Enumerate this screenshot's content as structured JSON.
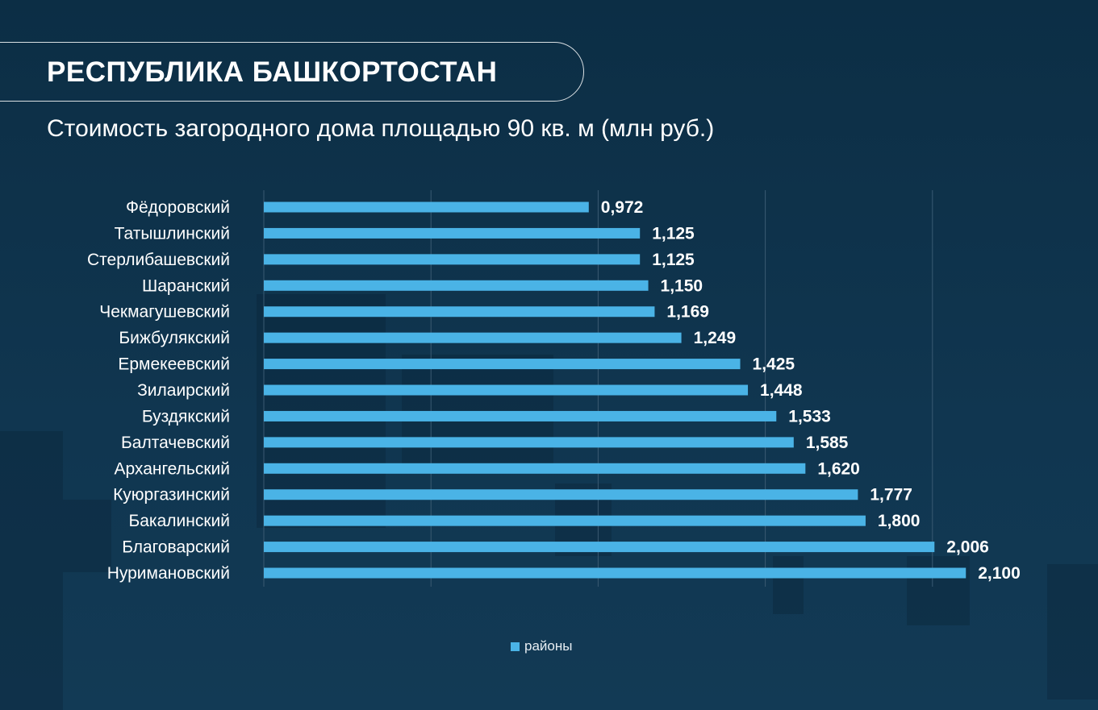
{
  "header": {
    "title": "РЕСПУБЛИКА БАШКОРТОСТАН",
    "subtitle": "Стоимость загородного дома площадью 90 кв. м (млн руб.)"
  },
  "colors": {
    "bar": "#4ab3e6",
    "background": "#0f3550",
    "grid": "#3a5a72",
    "text": "#ffffff"
  },
  "chart_data": {
    "type": "bar",
    "orientation": "horizontal",
    "title": "Стоимость загородного дома площадью 90 кв. м (млн руб.)",
    "categories": [
      "Фёдоровский",
      "Татышлинский",
      "Стерлибашевский",
      "Шаранский",
      "Чекмагушевский",
      "Бижбулякский",
      "Ермекеевский",
      "Зилаирский",
      "Буздякский",
      "Балтачевский",
      "Архангельский",
      "Куюргазинский",
      "Бакалинский",
      "Благоварский",
      "Нуримановский"
    ],
    "series": [
      {
        "name": "районы",
        "values": [
          0.972,
          1.125,
          1.125,
          1.15,
          1.169,
          1.249,
          1.425,
          1.448,
          1.533,
          1.585,
          1.62,
          1.777,
          1.8,
          2.006,
          2.1
        ]
      }
    ],
    "value_labels": [
      "0,972",
      "1,125",
      "1,125",
      "1,150",
      "1,169",
      "1,249",
      "1,425",
      "1,448",
      "1,533",
      "1,585",
      "1,620",
      "1,777",
      "1,800",
      "2,006",
      "2,100"
    ],
    "xlim": [
      0,
      2.5
    ],
    "grid_values": [
      0,
      0.5,
      1,
      1.5,
      2
    ],
    "grid": true,
    "legend": "bottom-center"
  }
}
